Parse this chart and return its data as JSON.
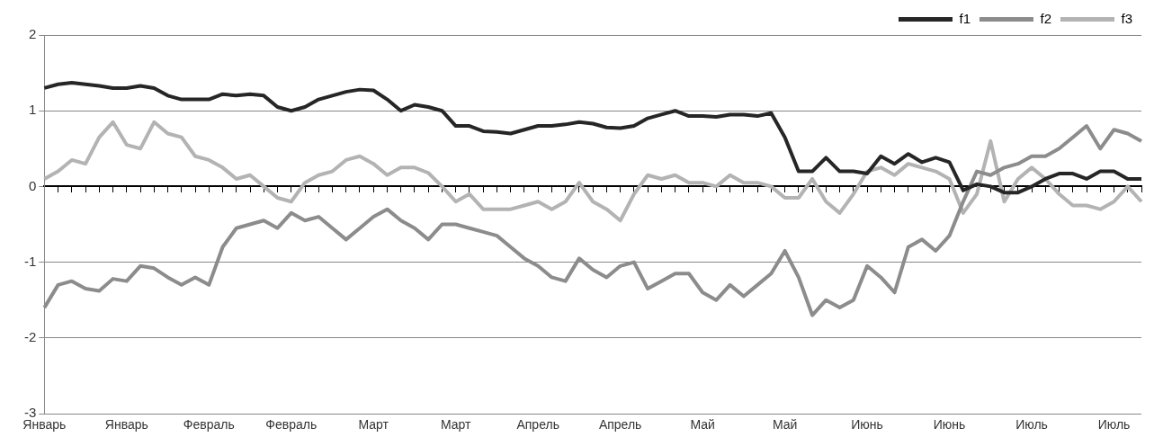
{
  "chart_data": {
    "type": "line",
    "categories": [
      "Январь",
      null,
      null,
      null,
      null,
      null,
      "Январь",
      null,
      null,
      null,
      null,
      null,
      "Февраль",
      null,
      null,
      null,
      null,
      null,
      "Февраль",
      null,
      null,
      null,
      null,
      null,
      "Март",
      null,
      null,
      null,
      null,
      null,
      "Март",
      null,
      null,
      null,
      null,
      null,
      "Апрель",
      null,
      null,
      null,
      null,
      null,
      "Апрель",
      null,
      null,
      null,
      null,
      null,
      "Май",
      null,
      null,
      null,
      null,
      null,
      "Май",
      null,
      null,
      null,
      null,
      null,
      "Июнь",
      null,
      null,
      null,
      null,
      null,
      "Июнь",
      null,
      null,
      null,
      null,
      null,
      "Июль",
      null,
      null,
      null,
      null,
      null,
      "Июль",
      null,
      null
    ],
    "series": [
      {
        "name": "f1",
        "color": "#262626",
        "values": [
          1.3,
          1.35,
          1.37,
          1.35,
          1.33,
          1.3,
          1.3,
          1.33,
          1.3,
          1.2,
          1.15,
          1.15,
          1.15,
          1.22,
          1.2,
          1.22,
          1.2,
          1.05,
          1.0,
          1.05,
          1.15,
          1.2,
          1.25,
          1.28,
          1.27,
          1.15,
          1.0,
          1.08,
          1.05,
          1.0,
          0.8,
          0.8,
          0.73,
          0.72,
          0.7,
          0.75,
          0.8,
          0.8,
          0.82,
          0.85,
          0.83,
          0.78,
          0.77,
          0.8,
          0.9,
          0.95,
          1.0,
          0.93,
          0.93,
          0.92,
          0.95,
          0.95,
          0.93,
          0.97,
          0.65,
          0.2,
          0.2,
          0.38,
          0.2,
          0.2,
          0.17,
          0.4,
          0.3,
          0.43,
          0.32,
          0.38,
          0.32,
          -0.05,
          0.03,
          0.0,
          -0.08,
          -0.08,
          0.0,
          0.1,
          0.17,
          0.17,
          0.1,
          0.2,
          0.2,
          0.1,
          0.1
        ]
      },
      {
        "name": "f2",
        "color": "#8c8c8c",
        "values": [
          -1.6,
          -1.3,
          -1.25,
          -1.35,
          -1.38,
          -1.22,
          -1.25,
          -1.05,
          -1.08,
          -1.2,
          -1.3,
          -1.2,
          -1.3,
          -0.8,
          -0.55,
          -0.5,
          -0.45,
          -0.55,
          -0.35,
          -0.45,
          -0.4,
          -0.55,
          -0.7,
          -0.55,
          -0.4,
          -0.3,
          -0.45,
          -0.55,
          -0.7,
          -0.5,
          -0.5,
          -0.55,
          -0.6,
          -0.65,
          -0.8,
          -0.95,
          -1.05,
          -1.2,
          -1.25,
          -0.95,
          -1.1,
          -1.2,
          -1.05,
          -1.0,
          -1.35,
          -1.25,
          -1.15,
          -1.15,
          -1.4,
          -1.5,
          -1.3,
          -1.45,
          -1.3,
          -1.15,
          -0.85,
          -1.2,
          -1.7,
          -1.5,
          -1.6,
          -1.5,
          -1.05,
          -1.2,
          -1.4,
          -0.8,
          -0.7,
          -0.85,
          -0.65,
          -0.2,
          0.2,
          0.15,
          0.25,
          0.3,
          0.4,
          0.4,
          0.5,
          0.65,
          0.8,
          0.5,
          0.75,
          0.7,
          0.6
        ]
      },
      {
        "name": "f3",
        "color": "#b3b3b3",
        "values": [
          0.1,
          0.2,
          0.35,
          0.3,
          0.65,
          0.85,
          0.55,
          0.5,
          0.85,
          0.7,
          0.65,
          0.4,
          0.35,
          0.25,
          0.1,
          0.15,
          0.0,
          -0.15,
          -0.2,
          0.05,
          0.15,
          0.2,
          0.35,
          0.4,
          0.3,
          0.15,
          0.25,
          0.25,
          0.18,
          0.0,
          -0.2,
          -0.1,
          -0.3,
          -0.3,
          -0.3,
          -0.25,
          -0.2,
          -0.3,
          -0.2,
          0.05,
          -0.2,
          -0.3,
          -0.45,
          -0.1,
          0.15,
          0.1,
          0.15,
          0.05,
          0.05,
          0.0,
          0.15,
          0.05,
          0.05,
          0.0,
          -0.15,
          -0.15,
          0.1,
          -0.2,
          -0.35,
          -0.1,
          0.2,
          0.25,
          0.15,
          0.3,
          0.25,
          0.2,
          0.1,
          -0.35,
          -0.1,
          0.6,
          -0.2,
          0.1,
          0.25,
          0.1,
          -0.1,
          -0.25,
          -0.25,
          -0.3,
          -0.2,
          0.0,
          -0.2
        ]
      }
    ],
    "ylim": [
      -3,
      2
    ],
    "yticks": [
      -3,
      -2,
      -1,
      0,
      1,
      2
    ],
    "grid": "y",
    "legend": "top right",
    "marker": "none",
    "line_style": "solid"
  }
}
